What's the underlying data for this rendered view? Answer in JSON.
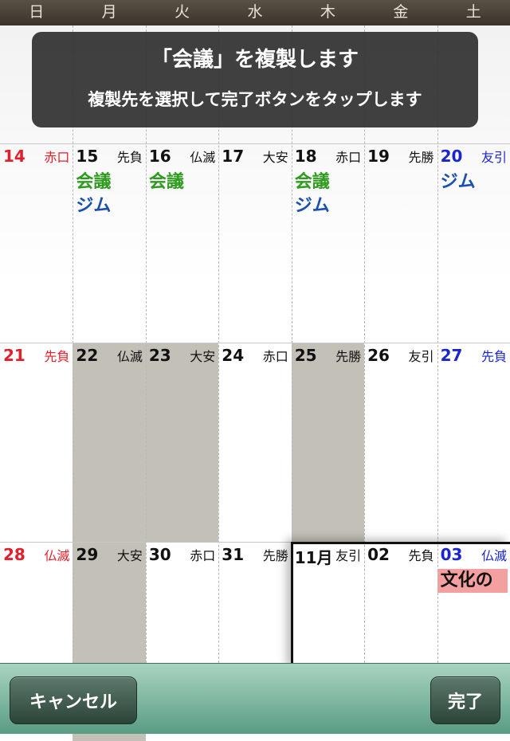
{
  "weekdays": [
    "日",
    "月",
    "火",
    "水",
    "木",
    "金",
    "土"
  ],
  "overlay": {
    "title": "「会議」を複製します",
    "subtitle": "複製先を選択して完了ボタンをタップします"
  },
  "weeks": [
    [
      {
        "date": "14",
        "rokuyo": "赤口",
        "events": []
      },
      {
        "date": "15",
        "rokuyo": "先負",
        "events": [
          {
            "text": "会議",
            "color": "green"
          },
          {
            "text": "ジム",
            "color": "blue"
          }
        ]
      },
      {
        "date": "16",
        "rokuyo": "仏滅",
        "events": [
          {
            "text": "会議",
            "color": "green"
          }
        ]
      },
      {
        "date": "17",
        "rokuyo": "大安",
        "events": []
      },
      {
        "date": "18",
        "rokuyo": "赤口",
        "events": [
          {
            "text": "会議",
            "color": "green"
          },
          {
            "text": "ジム",
            "color": "blue"
          }
        ]
      },
      {
        "date": "19",
        "rokuyo": "先勝",
        "events": []
      },
      {
        "date": "20",
        "rokuyo": "友引",
        "events": [
          {
            "text": "ジム",
            "color": "blue"
          }
        ]
      }
    ],
    [
      {
        "date": "21",
        "rokuyo": "先負",
        "events": []
      },
      {
        "date": "22",
        "rokuyo": "仏滅",
        "events": [],
        "shaded": true
      },
      {
        "date": "23",
        "rokuyo": "大安",
        "events": [],
        "shaded": true
      },
      {
        "date": "24",
        "rokuyo": "赤口",
        "events": []
      },
      {
        "date": "25",
        "rokuyo": "先勝",
        "events": [],
        "shaded": true
      },
      {
        "date": "26",
        "rokuyo": "友引",
        "events": []
      },
      {
        "date": "27",
        "rokuyo": "先負",
        "events": []
      }
    ],
    [
      {
        "date": "28",
        "rokuyo": "仏滅",
        "events": []
      },
      {
        "date": "29",
        "rokuyo": "大安",
        "events": [],
        "shaded": true
      },
      {
        "date": "30",
        "rokuyo": "赤口",
        "events": []
      },
      {
        "date": "31",
        "rokuyo": "先勝",
        "events": []
      },
      {
        "date": "11月",
        "rokuyo": "友引",
        "events": []
      },
      {
        "date": "02",
        "rokuyo": "先負",
        "events": []
      },
      {
        "date": "03",
        "rokuyo": "仏滅",
        "events": [
          {
            "text": "文化の",
            "color": "holiday"
          }
        ]
      }
    ]
  ],
  "toolbar": {
    "cancel_label": "キャンセル",
    "done_label": "完了"
  },
  "colors": {
    "sunday": "#e0202a",
    "saturday": "#1a25d0",
    "event_green": "#2e9a1e",
    "event_blue": "#1a4fb0",
    "holiday_bg": "#f5a0a0",
    "selected_bg": "#c3c0b8"
  }
}
